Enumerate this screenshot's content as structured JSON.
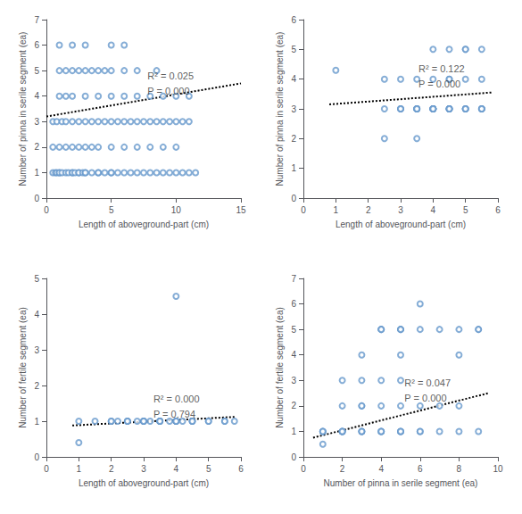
{
  "chart_data": [
    {
      "type": "scatter",
      "xlabel": "Length of aboveground-part (cm)",
      "ylabel": "Number of pinna in serile segment (ea)",
      "xlim": [
        0,
        15
      ],
      "ylim": [
        0,
        7
      ],
      "xticks": [
        0,
        5,
        10,
        15
      ],
      "yticks": [
        0,
        1,
        2,
        3,
        4,
        5,
        6,
        7
      ],
      "grid": false,
      "annotations": [
        {
          "text": "R² = 0.025\nP = 0.000",
          "x": 7.8,
          "y": 5.1
        }
      ],
      "series": [
        {
          "type": "scatter",
          "color": "#6699cc",
          "marker": "hollow",
          "x": [
            0.5,
            0.7,
            0.8,
            1.0,
            1.0,
            1.2,
            1.5,
            1.7,
            2.0,
            2.0,
            2.2,
            2.5,
            2.5,
            2.8,
            3.0,
            3.0,
            3.5,
            4.0,
            4.0,
            4.5,
            5.0,
            5.0,
            5.5,
            6.0,
            6.5,
            7.0,
            7.5,
            8.0,
            8.5,
            9.0,
            9.5,
            10.0,
            10.5,
            11.0,
            11.5,
            0.5,
            1.0,
            1.5,
            2.0,
            2.5,
            3.0,
            3.5,
            4.0,
            5.0,
            6.0,
            7.0,
            8.0,
            9.0,
            10.0,
            0.5,
            0.8,
            1.2,
            1.5,
            2.0,
            2.5,
            3.0,
            3.5,
            4.0,
            4.5,
            5.0,
            5.5,
            6.0,
            6.5,
            7.0,
            7.5,
            8.0,
            8.5,
            9.0,
            9.5,
            10.0,
            10.5,
            11.0,
            1.0,
            1.5,
            2.0,
            3.0,
            4.0,
            5.0,
            6.0,
            7.0,
            8.0,
            9.0,
            10.0,
            11.0,
            1.0,
            1.5,
            2.0,
            2.5,
            3.0,
            3.5,
            4.0,
            4.5,
            5.0,
            6.0,
            7.0,
            8.5,
            1.0,
            2.0,
            3.0,
            5.0,
            6.0
          ],
          "values": [
            1,
            1,
            1,
            1,
            1,
            1,
            1,
            1,
            1,
            1,
            1,
            1,
            1,
            1,
            1,
            1,
            1,
            1,
            1,
            1,
            1,
            1,
            1,
            1,
            1,
            1,
            1,
            1,
            1,
            1,
            1,
            1,
            1,
            1,
            1,
            2,
            2,
            2,
            2,
            2,
            2,
            2,
            2,
            2,
            2,
            2,
            2,
            2,
            2,
            3,
            3,
            3,
            3,
            3,
            3,
            3,
            3,
            3,
            3,
            3,
            3,
            3,
            3,
            3,
            3,
            3,
            3,
            3,
            3,
            3,
            3,
            3,
            4,
            4,
            4,
            4,
            4,
            4,
            4,
            4,
            4,
            4,
            4,
            4,
            5,
            5,
            5,
            5,
            5,
            5,
            5,
            5,
            5,
            5,
            5,
            5,
            6,
            6,
            6,
            6,
            6
          ]
        },
        {
          "type": "line",
          "color": "black",
          "line_style": "dotted",
          "x": [
            0,
            15
          ],
          "values": [
            3.2,
            4.5
          ]
        }
      ]
    },
    {
      "type": "scatter",
      "xlabel": "Length of aboveground-part (cm)",
      "ylabel": "Number of pinna in serile segment (ea)",
      "xlim": [
        0,
        6
      ],
      "ylim": [
        0,
        6
      ],
      "xticks": [
        0,
        1,
        2,
        3,
        4,
        5,
        6
      ],
      "yticks": [
        0,
        1,
        2,
        3,
        4,
        5,
        6
      ],
      "grid": false,
      "annotations": [
        {
          "text": "R² = 0.122\nP = 0.000",
          "x": 3.55,
          "y": 4.6
        }
      ],
      "series": [
        {
          "type": "scatter",
          "color": "#6699cc",
          "marker": "hollow",
          "x": [
            1.0,
            2.5,
            2.5,
            3.0,
            3.0,
            3.0,
            3.5,
            3.5,
            3.5,
            3.5,
            3.5,
            4.0,
            4.0,
            4.0,
            4.0,
            4.0,
            4.0,
            4.0,
            4.5,
            4.5,
            4.5,
            4.5,
            4.5,
            5.0,
            5.0,
            5.0,
            5.0,
            5.5,
            5.5,
            5.5,
            5.5,
            2.5,
            3.0,
            3.5,
            4.0,
            4.5,
            5.0,
            5.5,
            3.5,
            4.0,
            4.5,
            5.0,
            5.5,
            4.5,
            5.0
          ],
          "values": [
            4.3,
            2.0,
            3,
            3,
            3,
            3,
            3,
            3,
            3,
            3,
            3,
            3,
            3,
            3,
            3,
            3,
            3,
            3,
            3,
            3,
            3,
            3,
            3,
            3,
            3,
            3,
            3,
            3,
            3,
            3,
            3,
            4,
            4,
            4,
            4,
            4,
            4,
            4,
            2,
            5,
            5,
            5,
            5,
            4,
            5
          ]
        },
        {
          "type": "line",
          "color": "black",
          "line_style": "dotted",
          "x": [
            0.8,
            5.8
          ],
          "values": [
            3.15,
            3.55
          ]
        }
      ]
    },
    {
      "type": "scatter",
      "xlabel": "Length of aboveground-part (cm)",
      "ylabel": "Number of fertile segment (ea)",
      "xlim": [
        0,
        6
      ],
      "ylim": [
        0,
        5
      ],
      "xticks": [
        0,
        1,
        2,
        3,
        4,
        5,
        6
      ],
      "yticks": [
        0,
        1,
        2,
        3,
        4,
        5
      ],
      "grid": false,
      "annotations": [
        {
          "text": "R² = 0.000\nP = 0.794",
          "x": 3.3,
          "y": 1.85
        }
      ],
      "series": [
        {
          "type": "scatter",
          "color": "#6699cc",
          "marker": "hollow",
          "x": [
            1.0,
            1.0,
            1.5,
            2.0,
            2.0,
            2.2,
            2.5,
            2.5,
            2.5,
            2.8,
            3.0,
            3.0,
            3.0,
            3.0,
            3.2,
            3.5,
            3.5,
            3.5,
            3.5,
            3.8,
            4.0,
            4.0,
            4.0,
            4.0,
            4.2,
            4.5,
            4.5,
            4.5,
            5.0,
            5.0,
            5.5,
            5.5,
            5.8,
            4.0
          ],
          "values": [
            0.4,
            1,
            1,
            1,
            1,
            1,
            1,
            1,
            1,
            1,
            1,
            1,
            1,
            1,
            1,
            1,
            1,
            1,
            1,
            1,
            1,
            1,
            1,
            1,
            1,
            1,
            1,
            1,
            1,
            1,
            1,
            1,
            1,
            4.5
          ]
        },
        {
          "type": "line",
          "color": "black",
          "line_style": "dotted",
          "x": [
            0.8,
            5.8
          ],
          "values": [
            0.88,
            1.12
          ]
        }
      ]
    },
    {
      "type": "scatter",
      "xlabel": "Number of pinna in serile segment (ea)",
      "ylabel": "Number of fertile segment (ea)",
      "xlim": [
        0,
        10
      ],
      "ylim": [
        0,
        7
      ],
      "xticks": [
        0,
        2,
        4,
        6,
        8,
        10
      ],
      "yticks": [
        0,
        1,
        2,
        3,
        4,
        5,
        6,
        7
      ],
      "grid": false,
      "annotations": [
        {
          "text": "R² = 0.047\nP = 0.000",
          "x": 5.2,
          "y": 3.2
        }
      ],
      "series": [
        {
          "type": "scatter",
          "color": "#6699cc",
          "marker": "hollow",
          "x": [
            1,
            1,
            1,
            1,
            2,
            2,
            2,
            2,
            2,
            2,
            3,
            3,
            3,
            3,
            3,
            3,
            3,
            4,
            4,
            4,
            4,
            4,
            4,
            4,
            4,
            5,
            5,
            5,
            5,
            5,
            5,
            5,
            5,
            5,
            6,
            6,
            6,
            6,
            6,
            7,
            7,
            7,
            8,
            8,
            8,
            8,
            9,
            9,
            9
          ],
          "values": [
            0.5,
            1,
            1,
            1,
            1,
            1,
            1,
            2,
            3,
            1,
            1,
            1,
            1,
            2,
            2,
            3,
            4,
            1,
            1,
            1,
            2,
            3,
            5,
            5,
            5,
            1,
            1,
            1,
            2,
            3,
            4,
            5,
            5,
            5,
            1,
            1,
            2,
            5,
            6,
            1,
            2,
            5,
            1,
            2,
            4,
            5,
            1,
            5,
            5
          ]
        },
        {
          "type": "line",
          "color": "black",
          "line_style": "dotted",
          "x": [
            0.5,
            9.5
          ],
          "values": [
            0.75,
            2.5
          ]
        }
      ]
    }
  ]
}
